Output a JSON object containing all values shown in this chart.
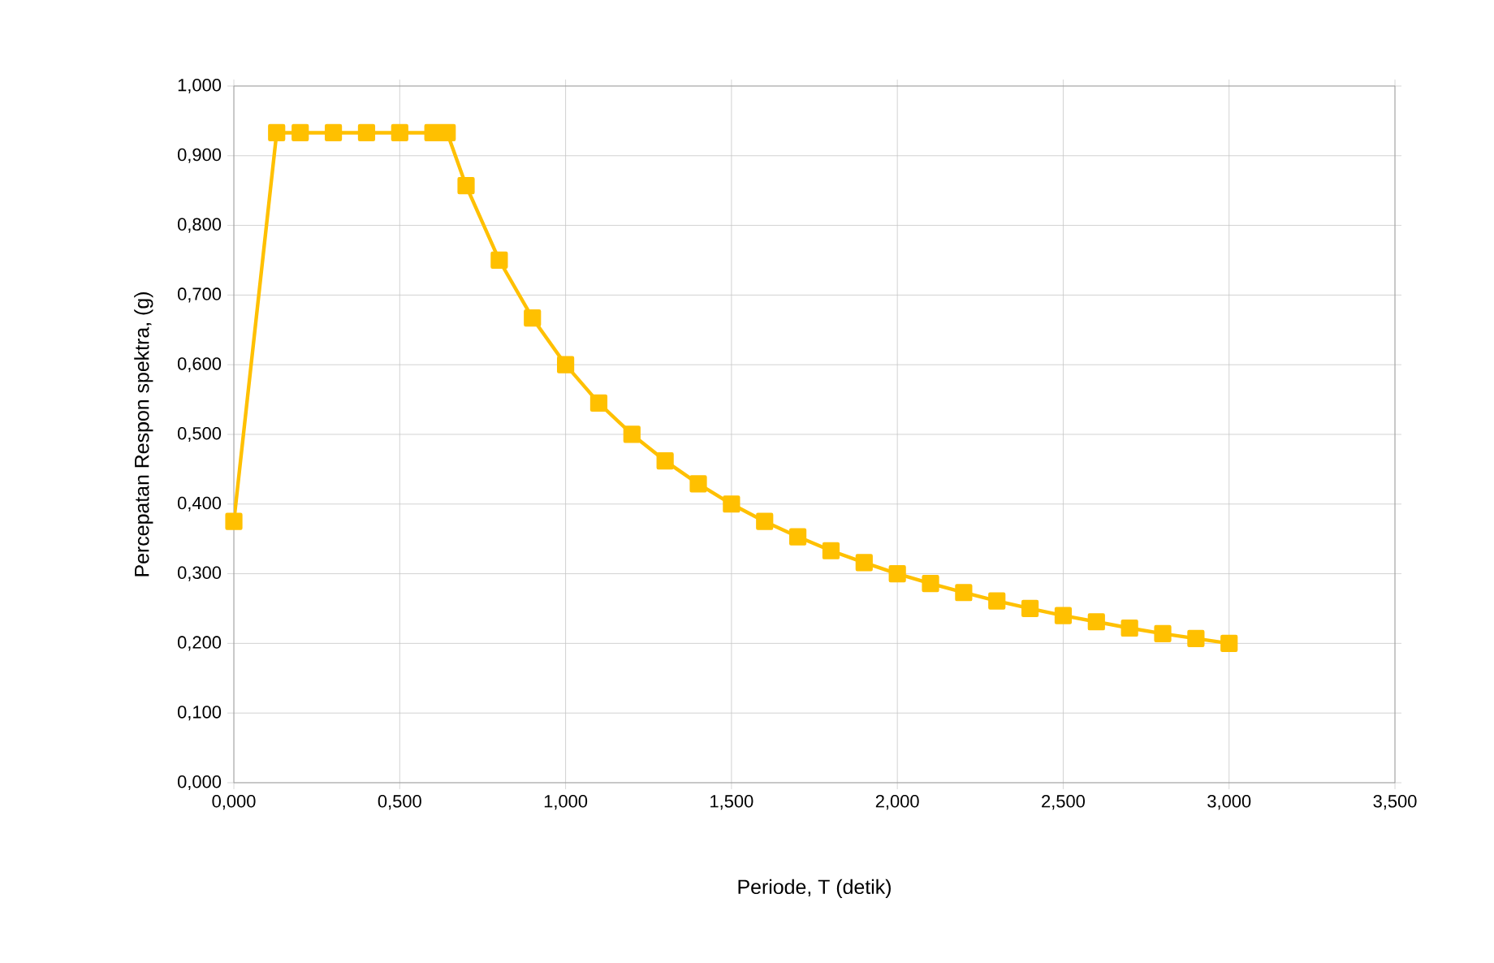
{
  "chart_data": {
    "type": "line",
    "xlabel": "Periode, T (detik)",
    "ylabel": "Percepatan Respon spektra, (g)",
    "x": [
      0,
      0.129,
      0.2,
      0.3,
      0.4,
      0.5,
      0.6,
      0.643,
      0.7,
      0.8,
      0.9,
      1.0,
      1.1,
      1.2,
      1.3,
      1.4,
      1.5,
      1.6,
      1.7,
      1.8,
      1.9,
      2.0,
      2.1,
      2.2,
      2.3,
      2.4,
      2.5,
      2.6,
      2.7,
      2.8,
      2.9,
      3.0
    ],
    "series": [
      {
        "color": "#ffc000",
        "values": [
          0.375,
          0.933,
          0.933,
          0.933,
          0.933,
          0.933,
          0.933,
          0.933,
          0.857,
          0.75,
          0.667,
          0.6,
          0.545,
          0.5,
          0.462,
          0.429,
          0.4,
          0.375,
          0.353,
          0.333,
          0.316,
          0.3,
          0.286,
          0.273,
          0.261,
          0.25,
          0.24,
          0.231,
          0.222,
          0.214,
          0.207,
          0.2
        ]
      }
    ],
    "xlim": [
      0,
      3.5
    ],
    "xticks": [
      {
        "value": 0,
        "label": "0,000"
      },
      {
        "value": 0.5,
        "label": "0,500"
      },
      {
        "value": 1.0,
        "label": "1,000"
      },
      {
        "value": 1.5,
        "label": "1,500"
      },
      {
        "value": 2.0,
        "label": "2,000"
      },
      {
        "value": 2.5,
        "label": "2,500"
      },
      {
        "value": 3.0,
        "label": "3,000"
      },
      {
        "value": 3.5,
        "label": "3,500"
      }
    ],
    "ylim": [
      0,
      1.0
    ],
    "yticks": [
      {
        "value": 0,
        "label": "0,000"
      },
      {
        "value": 0.1,
        "label": "0,100"
      },
      {
        "value": 0.2,
        "label": "0,200"
      },
      {
        "value": 0.3,
        "label": "0,300"
      },
      {
        "value": 0.4,
        "label": "0,400"
      },
      {
        "value": 0.5,
        "label": "0,500"
      },
      {
        "value": 0.6,
        "label": "0,600"
      },
      {
        "value": 0.7,
        "label": "0,700"
      },
      {
        "value": 0.8,
        "label": "0,800"
      },
      {
        "value": 0.9,
        "label": "0,900"
      },
      {
        "value": 1.0,
        "label": "1,000"
      }
    ],
    "grid": true,
    "marker": "square",
    "line_style": "solid"
  }
}
